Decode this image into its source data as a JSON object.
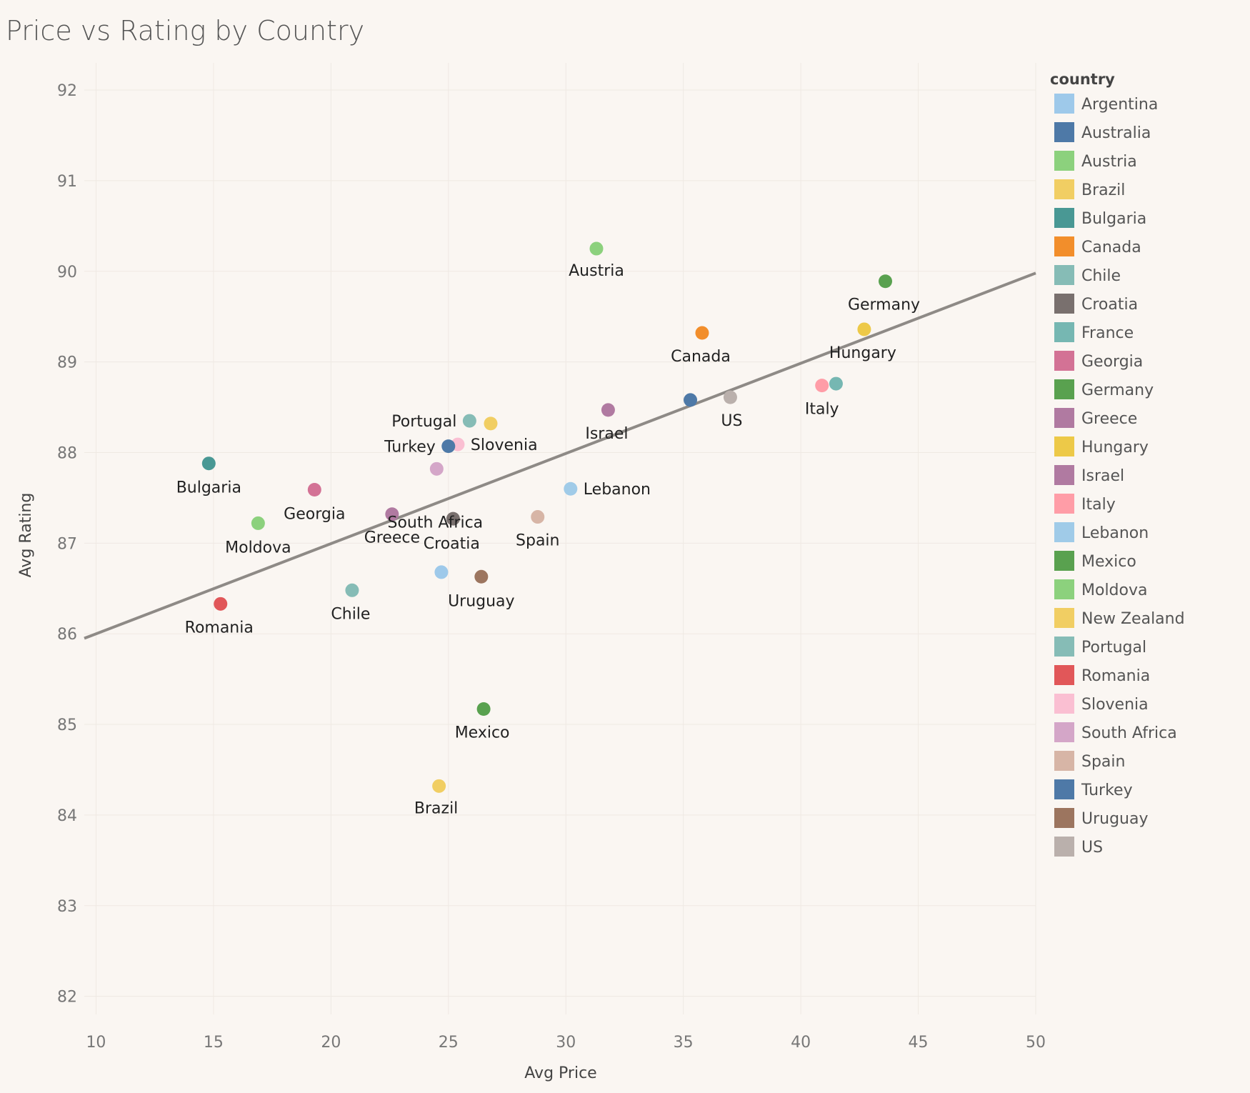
{
  "chart_data": {
    "type": "scatter",
    "title": "Price vs Rating by Country",
    "xlabel": "Avg Price",
    "ylabel": "Avg Rating",
    "xlim": [
      9.5,
      50
    ],
    "ylim": [
      81.8,
      92.3
    ],
    "xticks": [
      "10",
      "15",
      "20",
      "25",
      "30",
      "35",
      "40",
      "45",
      "50"
    ],
    "yticks": [
      "82",
      "83",
      "84",
      "85",
      "86",
      "87",
      "88",
      "89",
      "90",
      "91",
      "92"
    ],
    "grid": true,
    "legend": {
      "title": "country",
      "position": "right"
    },
    "trendline": {
      "type": "linear",
      "x": [
        9.5,
        50
      ],
      "y": [
        85.95,
        89.98
      ]
    },
    "series": [
      {
        "name": "Argentina",
        "x": 24.7,
        "y": 86.68,
        "color": "#9ec9ea",
        "label": ""
      },
      {
        "name": "Australia",
        "x": 35.3,
        "y": 88.58,
        "color": "#4e79a7",
        "label": ""
      },
      {
        "name": "Austria",
        "x": 31.3,
        "y": 90.25,
        "color": "#8cd17d",
        "label": "Austria"
      },
      {
        "name": "Brazil",
        "x": 24.6,
        "y": 84.32,
        "color": "#f1ce63",
        "label": "Brazil"
      },
      {
        "name": "Bulgaria",
        "x": 14.8,
        "y": 87.88,
        "color": "#499894",
        "label": "Bulgaria"
      },
      {
        "name": "Canada",
        "x": 35.8,
        "y": 89.32,
        "color": "#f28e2b",
        "label": "Canada"
      },
      {
        "name": "Chile",
        "x": 20.9,
        "y": 86.48,
        "color": "#86bcb6",
        "label": "Chile"
      },
      {
        "name": "Croatia",
        "x": 25.2,
        "y": 87.27,
        "color": "#79706e",
        "label": "Croatia"
      },
      {
        "name": "France",
        "x": 41.5,
        "y": 88.76,
        "color": "#76b7b2",
        "label": ""
      },
      {
        "name": "Georgia",
        "x": 19.3,
        "y": 87.59,
        "color": "#d37295",
        "label": "Georgia"
      },
      {
        "name": "Germany",
        "x": 43.6,
        "y": 89.89,
        "color": "#59a14f",
        "label": "Germany"
      },
      {
        "name": "Greece",
        "x": 22.6,
        "y": 87.32,
        "color": "#b07aa1",
        "label": "Greece"
      },
      {
        "name": "Hungary",
        "x": 42.7,
        "y": 89.36,
        "color": "#edc948",
        "label": "Hungary"
      },
      {
        "name": "Israel",
        "x": 31.8,
        "y": 88.47,
        "color": "#b07aa1",
        "label": "Israel"
      },
      {
        "name": "Italy",
        "x": 40.9,
        "y": 88.74,
        "color": "#ff9da7",
        "label": "Italy"
      },
      {
        "name": "Lebanon",
        "x": 30.2,
        "y": 87.6,
        "color": "#a0cbe8",
        "label": "Lebanon"
      },
      {
        "name": "Mexico",
        "x": 26.5,
        "y": 85.17,
        "color": "#59a14f",
        "label": "Mexico"
      },
      {
        "name": "Moldova",
        "x": 16.9,
        "y": 87.22,
        "color": "#8cd17d",
        "label": "Moldova"
      },
      {
        "name": "New Zealand",
        "x": 26.8,
        "y": 88.32,
        "color": "#f1ce63",
        "label": ""
      },
      {
        "name": "Portugal",
        "x": 25.9,
        "y": 88.35,
        "color": "#86bcb6",
        "label": "Portugal"
      },
      {
        "name": "Romania",
        "x": 15.3,
        "y": 86.33,
        "color": "#e15759",
        "label": "Romania"
      },
      {
        "name": "Slovenia",
        "x": 25.4,
        "y": 88.09,
        "color": "#fabfd2",
        "label": "Slovenia"
      },
      {
        "name": "South Africa",
        "x": 24.5,
        "y": 87.82,
        "color": "#d4a6c8",
        "label": "South Africa"
      },
      {
        "name": "Spain",
        "x": 28.8,
        "y": 87.29,
        "color": "#d7b5a6",
        "label": "Spain"
      },
      {
        "name": "Turkey",
        "x": 25.0,
        "y": 88.07,
        "color": "#4e79a7",
        "label": "Turkey"
      },
      {
        "name": "Uruguay",
        "x": 26.4,
        "y": 86.63,
        "color": "#9c755f",
        "label": "Uruguay"
      },
      {
        "name": "US",
        "x": 37.0,
        "y": 88.61,
        "color": "#bab0ac",
        "label": "US"
      }
    ]
  }
}
